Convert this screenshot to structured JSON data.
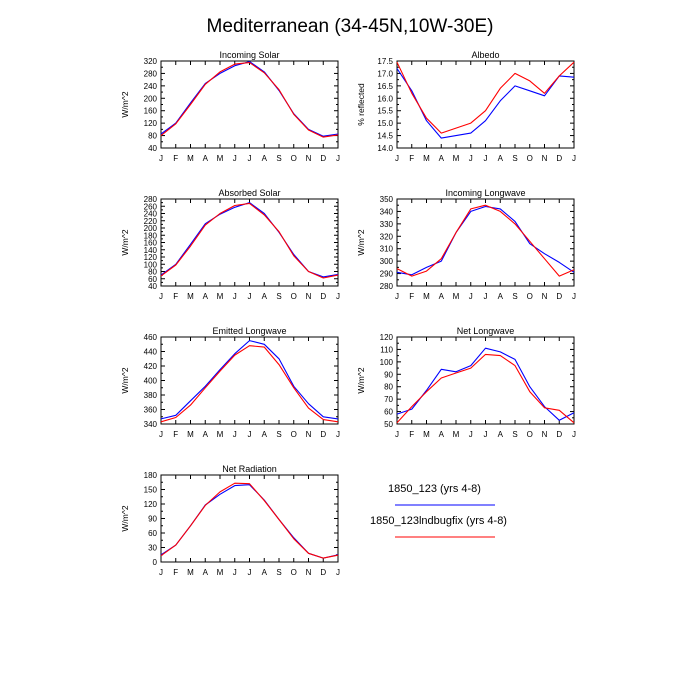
{
  "figure_title": "Mediterranean (34-45N,10W-30E)",
  "colors": {
    "series1": "#0000ff",
    "series2": "#ff0000",
    "axis": "#000000"
  },
  "legend": [
    {
      "label": "1850_123 (yrs 4-8)",
      "color": "#0000ff"
    },
    {
      "label": "1850_123lndbugfix (yrs 4-8)",
      "color": "#ff0000"
    }
  ],
  "chart_data": [
    {
      "type": "line",
      "title": "Incoming Solar",
      "ylabel": "W/m^2",
      "categories": [
        "J",
        "F",
        "M",
        "A",
        "M",
        "J",
        "J",
        "A",
        "S",
        "O",
        "N",
        "D",
        "J"
      ],
      "ylim": [
        40,
        320
      ],
      "yticks": [
        40,
        80,
        120,
        160,
        200,
        240,
        280,
        320
      ],
      "series": [
        {
          "name": "1850_123 (yrs 4-8)",
          "values": [
            85,
            120,
            185,
            248,
            280,
            305,
            318,
            285,
            225,
            150,
            100,
            78,
            85
          ]
        },
        {
          "name": "1850_123lndbugfix (yrs 4-8)",
          "values": [
            80,
            118,
            180,
            245,
            285,
            310,
            315,
            282,
            228,
            148,
            98,
            75,
            82
          ]
        }
      ]
    },
    {
      "type": "line",
      "title": "Albedo",
      "ylabel": "% reflected",
      "categories": [
        "J",
        "F",
        "M",
        "A",
        "M",
        "J",
        "J",
        "A",
        "S",
        "O",
        "N",
        "D",
        "J"
      ],
      "ylim": [
        14.0,
        17.5
      ],
      "yticks": [
        "14.0",
        "14.5",
        "15.0",
        "15.5",
        "16.0",
        "16.5",
        "17.0",
        "17.5"
      ],
      "series": [
        {
          "name": "1850_123 (yrs 4-8)",
          "values": [
            17.2,
            16.3,
            15.1,
            14.4,
            14.5,
            14.6,
            15.1,
            15.9,
            16.5,
            16.3,
            16.1,
            16.9,
            16.85
          ]
        },
        {
          "name": "1850_123lndbugfix (yrs 4-8)",
          "values": [
            17.45,
            16.2,
            15.2,
            14.6,
            14.8,
            15.0,
            15.5,
            16.4,
            17.0,
            16.7,
            16.2,
            16.9,
            17.45
          ]
        }
      ]
    },
    {
      "type": "line",
      "title": "Absorbed Solar",
      "ylabel": "W/m^2",
      "categories": [
        "J",
        "F",
        "M",
        "A",
        "M",
        "J",
        "J",
        "A",
        "S",
        "O",
        "N",
        "D",
        "J"
      ],
      "ylim": [
        40,
        280
      ],
      "yticks": [
        40,
        60,
        80,
        100,
        120,
        140,
        160,
        180,
        200,
        220,
        240,
        260,
        280
      ],
      "series": [
        {
          "name": "1850_123 (yrs 4-8)",
          "values": [
            70,
            100,
            155,
            212,
            238,
            257,
            270,
            240,
            188,
            127,
            80,
            65,
            72
          ]
        },
        {
          "name": "1850_123lndbugfix (yrs 4-8)",
          "values": [
            68,
            98,
            150,
            208,
            240,
            262,
            268,
            236,
            190,
            123,
            80,
            62,
            70
          ]
        }
      ]
    },
    {
      "type": "line",
      "title": "Incoming Longwave",
      "ylabel": "W/m^2",
      "categories": [
        "J",
        "F",
        "M",
        "A",
        "M",
        "J",
        "J",
        "A",
        "S",
        "O",
        "N",
        "D",
        "J"
      ],
      "ylim": [
        280,
        350
      ],
      "yticks": [
        280,
        290,
        300,
        310,
        320,
        330,
        340,
        350
      ],
      "series": [
        {
          "name": "1850_123 (yrs 4-8)",
          "values": [
            291,
            289,
            295,
            300,
            323,
            340,
            344,
            342,
            332,
            314,
            306,
            299,
            291
          ]
        },
        {
          "name": "1850_123lndbugfix (yrs 4-8)",
          "values": [
            294,
            288,
            292,
            302,
            323,
            342,
            345,
            340,
            330,
            316,
            302,
            288,
            293
          ]
        }
      ]
    },
    {
      "type": "line",
      "title": "Emitted Longwave",
      "ylabel": "W/m^2",
      "categories": [
        "J",
        "F",
        "M",
        "A",
        "M",
        "J",
        "J",
        "A",
        "S",
        "O",
        "N",
        "D",
        "J"
      ],
      "ylim": [
        340,
        460
      ],
      "yticks": [
        340,
        360,
        380,
        400,
        420,
        440,
        460
      ],
      "series": [
        {
          "name": "1850_123 (yrs 4-8)",
          "values": [
            347,
            352,
            372,
            392,
            415,
            437,
            455,
            450,
            430,
            392,
            368,
            350,
            347
          ]
        },
        {
          "name": "1850_123lndbugfix (yrs 4-8)",
          "values": [
            343,
            349,
            366,
            390,
            413,
            435,
            448,
            446,
            422,
            390,
            362,
            346,
            343
          ]
        }
      ]
    },
    {
      "type": "line",
      "title": "Net Longwave",
      "ylabel": "W/m^2",
      "categories": [
        "J",
        "F",
        "M",
        "A",
        "M",
        "J",
        "J",
        "A",
        "S",
        "O",
        "N",
        "D",
        "J"
      ],
      "ylim": [
        50,
        120
      ],
      "yticks": [
        50,
        60,
        70,
        80,
        90,
        100,
        110,
        120
      ],
      "series": [
        {
          "name": "1850_123 (yrs 4-8)",
          "values": [
            58,
            62,
            77,
            94,
            92,
            97,
            111,
            108,
            102,
            80,
            64,
            53,
            59
          ]
        },
        {
          "name": "1850_123lndbugfix (yrs 4-8)",
          "values": [
            51,
            64,
            76,
            87,
            91,
            95,
            106,
            105,
            97,
            76,
            63,
            61,
            51
          ]
        }
      ]
    },
    {
      "type": "line",
      "title": "Net Radiation",
      "ylabel": "W/m^2",
      "categories": [
        "J",
        "F",
        "M",
        "A",
        "M",
        "J",
        "J",
        "A",
        "S",
        "O",
        "N",
        "D",
        "J"
      ],
      "ylim": [
        0,
        180
      ],
      "yticks": [
        0,
        30,
        60,
        90,
        120,
        150,
        180
      ],
      "series": [
        {
          "name": "1850_123 (yrs 4-8)",
          "values": [
            15,
            35,
            75,
            118,
            140,
            158,
            160,
            128,
            88,
            50,
            18,
            8,
            15
          ]
        },
        {
          "name": "1850_123lndbugfix (yrs 4-8)",
          "values": [
            13,
            35,
            75,
            117,
            145,
            163,
            162,
            127,
            88,
            48,
            18,
            8,
            14
          ]
        }
      ]
    }
  ]
}
